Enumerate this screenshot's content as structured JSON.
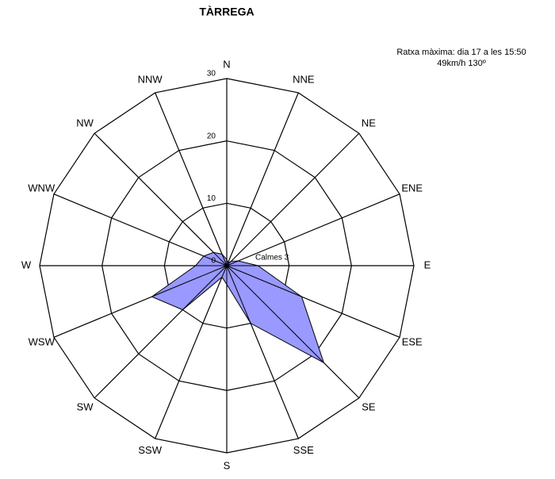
{
  "chart_data": {
    "type": "radar",
    "title": "TÀRREGA",
    "annotations": [
      "Ratxa màxima: dia 17 a les 15:50",
      "49km/h 130º"
    ],
    "calm_label": "Calmes 3",
    "categories": [
      "N",
      "NNE",
      "NE",
      "ENE",
      "E",
      "ESE",
      "SE",
      "SSE",
      "S",
      "SSW",
      "SW",
      "WSW",
      "W",
      "WNW",
      "NW",
      "NNW"
    ],
    "values": [
      1,
      0.5,
      1,
      2,
      5,
      13,
      22,
      10,
      3,
      2,
      10,
      13,
      5,
      4,
      3,
      2
    ],
    "color": "#9999ff",
    "rlim": [
      0,
      30
    ],
    "rticks": [
      0,
      10,
      20,
      30
    ],
    "grid": true
  }
}
